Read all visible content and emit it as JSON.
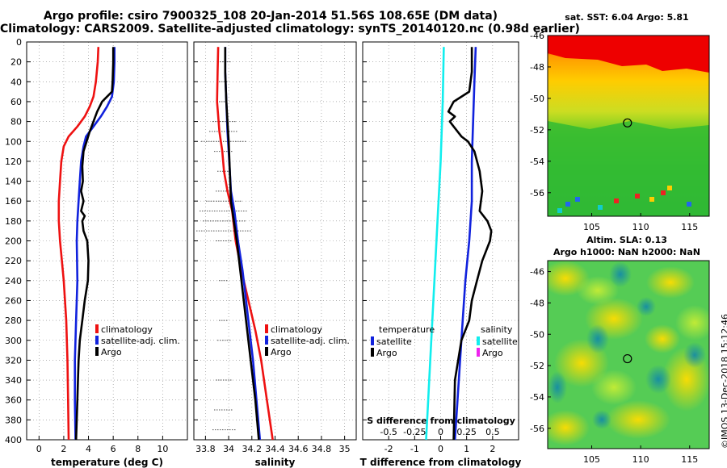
{
  "header": {
    "line1": "Argo profile: csiro 7900325_108 20-Jan-2014 51.56S 108.65E (DM data)",
    "line2": "Climatology: CARS2009. Satellite-adjusted climatology: synTS_20140120.nc (0.98d earlier)"
  },
  "colors": {
    "climatology": "#ee1111",
    "satellite": "#1122dd",
    "argo": "#000000",
    "salinity_sat": "#11eeee",
    "salinity_argo": "#ee22ee"
  },
  "chart_data": [
    {
      "type": "line",
      "id": "temperature",
      "title": "",
      "xlabel": "temperature (deg C)",
      "ylabel": "",
      "xlim": [
        -1,
        12
      ],
      "ylim": [
        400,
        0
      ],
      "xticks": [
        "0",
        "2",
        "4",
        "6",
        "8",
        "10"
      ],
      "yticks": [
        "0",
        "20",
        "40",
        "60",
        "80",
        "100",
        "120",
        "140",
        "160",
        "180",
        "200",
        "220",
        "240",
        "260",
        "280",
        "300",
        "320",
        "340",
        "360",
        "380",
        "400"
      ],
      "legend": [
        "climatology",
        "satellite-adj. clim.",
        "Argo"
      ],
      "series": [
        {
          "name": "climatology",
          "depth": [
            5,
            20,
            40,
            55,
            65,
            75,
            85,
            95,
            105,
            120,
            140,
            160,
            180,
            200,
            240,
            280,
            320,
            360,
            400
          ],
          "values": [
            4.8,
            4.75,
            4.6,
            4.4,
            4.1,
            3.7,
            3.1,
            2.4,
            2.0,
            1.8,
            1.7,
            1.6,
            1.6,
            1.7,
            2.0,
            2.2,
            2.3,
            2.35,
            2.4
          ]
        },
        {
          "name": "satellite-adj. clim.",
          "depth": [
            5,
            20,
            40,
            55,
            65,
            75,
            85,
            95,
            105,
            120,
            140,
            160,
            180,
            200,
            240,
            280,
            320,
            360,
            400
          ],
          "values": [
            6.1,
            6.1,
            6.05,
            5.9,
            5.5,
            5.0,
            4.4,
            3.8,
            3.6,
            3.4,
            3.3,
            3.2,
            3.1,
            3.05,
            3.1,
            3.0,
            2.9,
            2.9,
            2.95
          ]
        },
        {
          "name": "Argo",
          "depth": [
            5,
            20,
            40,
            50,
            55,
            60,
            70,
            80,
            90,
            100,
            110,
            125,
            140,
            150,
            160,
            170,
            175,
            180,
            190,
            200,
            220,
            240,
            260,
            280,
            300,
            320,
            340,
            360,
            380,
            400
          ],
          "values": [
            6.0,
            6.0,
            5.95,
            5.9,
            5.5,
            5.1,
            4.7,
            4.4,
            4.1,
            3.85,
            3.6,
            3.5,
            3.55,
            3.4,
            3.6,
            3.4,
            3.7,
            3.5,
            3.6,
            3.9,
            4.0,
            3.95,
            3.7,
            3.5,
            3.3,
            3.2,
            3.15,
            3.1,
            3.05,
            3.0
          ]
        }
      ]
    },
    {
      "type": "line",
      "id": "salinity",
      "title": "",
      "xlabel": "salinity",
      "ylabel": "",
      "xlim": [
        33.7,
        35.1
      ],
      "ylim": [
        400,
        0
      ],
      "xticks": [
        "33.8",
        "34",
        "34.2",
        "34.4",
        "34.6",
        "34.8",
        "35"
      ],
      "legend": [
        "climatology",
        "satellite-adj. clim.",
        "Argo"
      ],
      "series": [
        {
          "name": "climatology",
          "depth": [
            5,
            30,
            60,
            90,
            110,
            130,
            150,
            170,
            200,
            230,
            260,
            290,
            320,
            360,
            400
          ],
          "values": [
            33.91,
            33.905,
            33.9,
            33.92,
            33.945,
            33.96,
            33.99,
            34.03,
            34.06,
            34.11,
            34.17,
            34.23,
            34.28,
            34.33,
            34.38
          ]
        },
        {
          "name": "satellite-adj. clim.",
          "depth": [
            5,
            30,
            60,
            90,
            110,
            130,
            150,
            170,
            200,
            230,
            260,
            290,
            320,
            360,
            400
          ],
          "values": [
            33.97,
            33.97,
            33.98,
            33.99,
            34.0,
            34.01,
            34.02,
            34.05,
            34.08,
            34.12,
            34.15,
            34.18,
            34.21,
            34.24,
            34.27
          ]
        },
        {
          "name": "Argo",
          "depth": [
            5,
            30,
            60,
            80,
            100,
            130,
            160,
            200,
            240,
            280,
            320,
            360,
            400
          ],
          "values": [
            33.97,
            33.97,
            33.98,
            33.99,
            34.0,
            34.01,
            34.02,
            34.07,
            34.11,
            34.15,
            34.19,
            34.23,
            34.26
          ]
        }
      ]
    },
    {
      "type": "line",
      "id": "difference",
      "title": "",
      "xlabel": "T difference from climatology",
      "ylabel": "",
      "xlim": [
        -3,
        3
      ],
      "ylim": [
        400,
        0
      ],
      "xticks": [
        "-2",
        "-1",
        "0",
        "1",
        "2"
      ],
      "top_axis_label": "S difference from climatology",
      "top_ticks": [
        "-0.5",
        "-0.25",
        "0",
        "0.25",
        "0.5"
      ],
      "legend_temperature_title": "temperature",
      "legend_salinity_title": "salinity",
      "legend_temperature": [
        "satellite",
        "Argo"
      ],
      "legend_salinity": [
        "satellite",
        "Argo"
      ],
      "series": [
        {
          "name": "T satellite",
          "depth": [
            5,
            40,
            80,
            120,
            160,
            200,
            240,
            280,
            320,
            360,
            400
          ],
          "values": [
            1.35,
            1.3,
            1.25,
            1.2,
            1.2,
            1.1,
            0.95,
            0.85,
            0.75,
            0.65,
            0.55
          ]
        },
        {
          "name": "T Argo",
          "depth": [
            5,
            30,
            50,
            60,
            70,
            75,
            80,
            85,
            95,
            100,
            110,
            130,
            150,
            170,
            180,
            190,
            200,
            220,
            240,
            260,
            280,
            300,
            340,
            400
          ],
          "values": [
            1.2,
            1.2,
            1.1,
            0.5,
            0.3,
            0.55,
            0.35,
            0.5,
            0.8,
            1.05,
            1.3,
            1.5,
            1.6,
            1.5,
            1.8,
            1.95,
            1.9,
            1.6,
            1.4,
            1.2,
            1.1,
            0.8,
            0.55,
            0.5
          ]
        },
        {
          "name": "S satellite",
          "depth": [
            5,
            60,
            120,
            180,
            240,
            300,
            360,
            400
          ],
          "values": [
            0.03,
            0.02,
            0.0,
            -0.03,
            -0.06,
            -0.09,
            -0.12,
            -0.14
          ]
        }
      ]
    },
    {
      "type": "heatmap",
      "id": "sst-map",
      "title": "sat. SST: 6.04 Argo: 5.81",
      "xlim": [
        100.5,
        117
      ],
      "ylim": [
        -46,
        -57.5
      ],
      "xticks": [
        "105",
        "110",
        "115"
      ],
      "yticks": [
        "-46",
        "-48",
        "-50",
        "-52",
        "-54",
        "-56"
      ],
      "marker_lon": 108.65,
      "marker_lat": -51.56
    },
    {
      "type": "heatmap",
      "id": "sla-map",
      "title": "Altim. SLA: 0.13",
      "subtitle": "Argo h1000: NaN h2000: NaN",
      "xlim": [
        100.5,
        117
      ],
      "ylim": [
        -45.3,
        -57.3
      ],
      "xticks": [
        "105",
        "110",
        "115"
      ],
      "yticks": [
        "-46",
        "-48",
        "-50",
        "-52",
        "-54",
        "-56"
      ],
      "marker_lon": 108.65,
      "marker_lat": -51.56
    }
  ],
  "footer": {
    "stamp": "©IMOS 13-Dec-2018 15:12:46"
  }
}
